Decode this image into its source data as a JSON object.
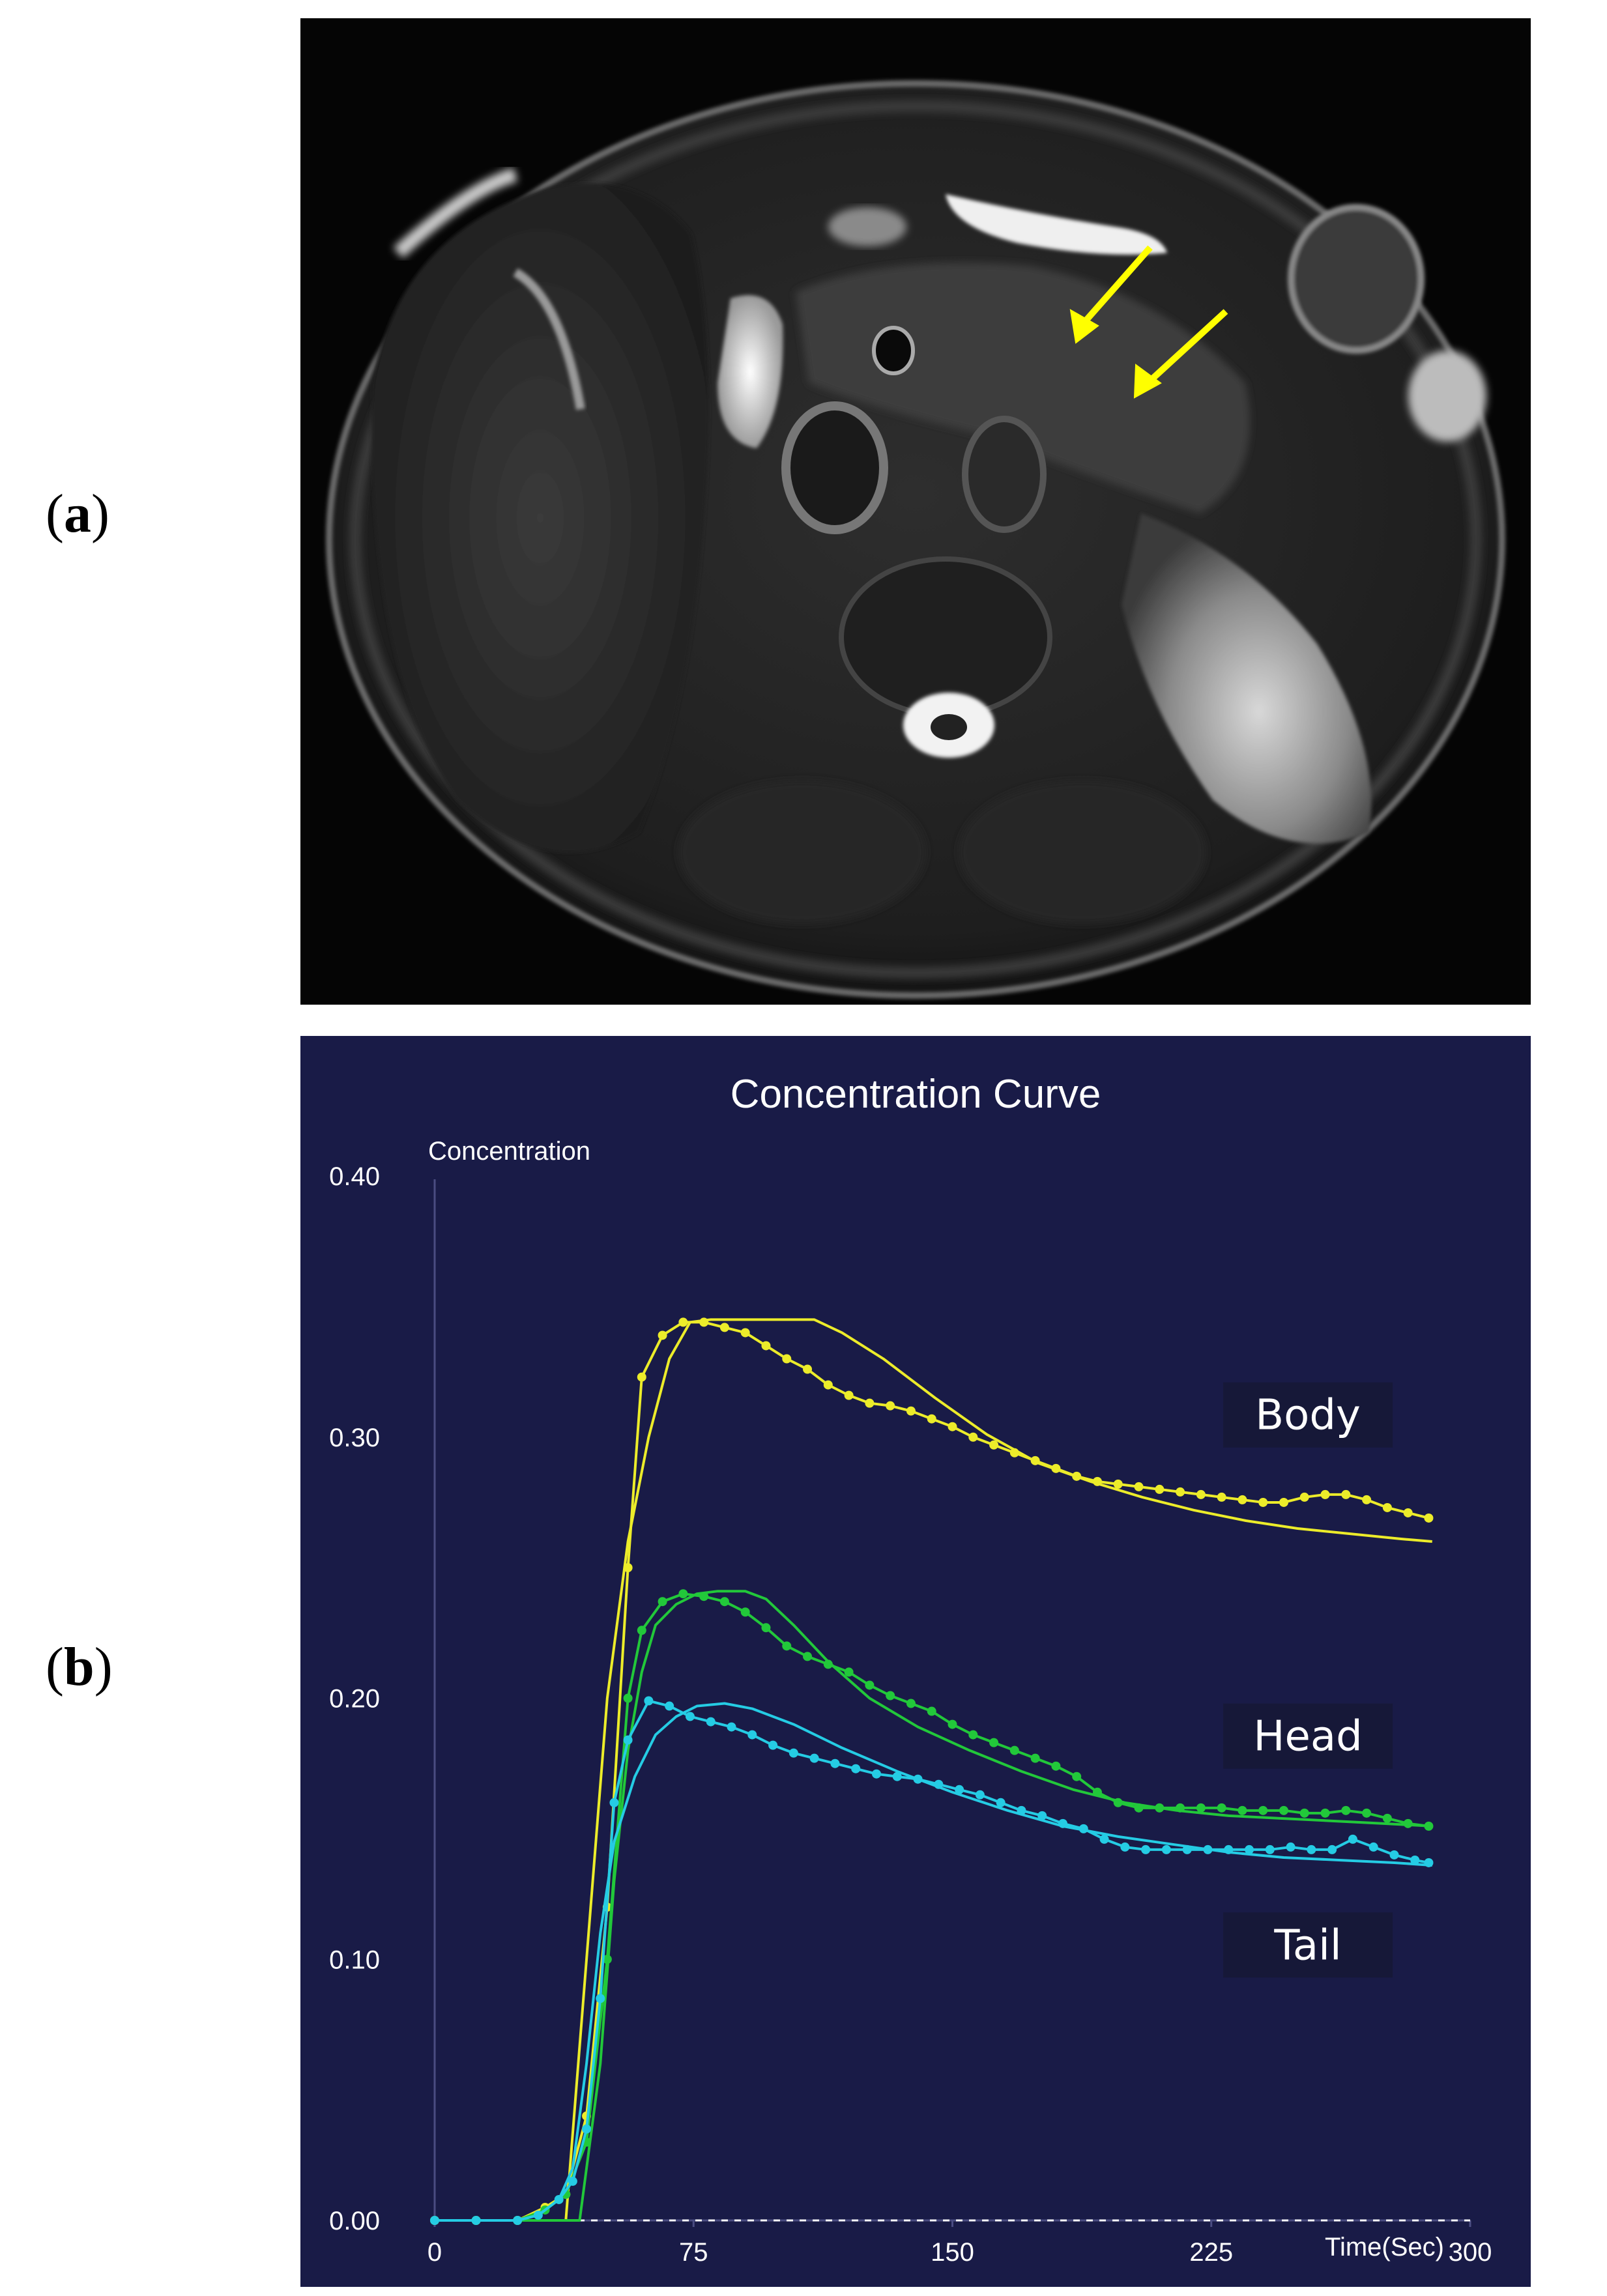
{
  "panels": [
    {
      "label_open": "(",
      "label_letter": "a",
      "label_close": ")"
    },
    {
      "label_open": "(",
      "label_letter": "b",
      "label_close": ")"
    }
  ],
  "colors": {
    "chart_background": "#191b47",
    "mri_background": "#050505",
    "arrow": "#ffff00",
    "body": "#ecec2a",
    "head": "#22c83a",
    "tail": "#25cce4",
    "axis_text": "#ffffff",
    "baseline": "#ffffff"
  },
  "mri": {
    "arrows": [
      {
        "name": "arrow-upper"
      },
      {
        "name": "arrow-lower"
      }
    ]
  },
  "chart_data": {
    "type": "line",
    "title": "Concentration Curve",
    "ylabel": "Concentration",
    "xlabel": "Time(Sec)",
    "xlim": [
      0,
      300
    ],
    "ylim": [
      0.0,
      0.4
    ],
    "xticks": [
      "0",
      "75",
      "150",
      "225",
      "300"
    ],
    "yticks": [
      "0.00",
      "0.10",
      "0.20",
      "0.30",
      "0.40"
    ],
    "grid": false,
    "series": [
      {
        "name": "Body",
        "color_key": "body",
        "measured": [
          [
            0,
            0
          ],
          [
            12,
            0
          ],
          [
            24,
            0
          ],
          [
            32,
            0.005
          ],
          [
            38,
            0.01
          ],
          [
            44,
            0.04
          ],
          [
            50,
            0.12
          ],
          [
            56,
            0.25
          ],
          [
            60,
            0.323
          ],
          [
            66,
            0.339
          ],
          [
            72,
            0.344
          ],
          [
            78,
            0.344
          ],
          [
            84,
            0.342
          ],
          [
            90,
            0.34
          ],
          [
            96,
            0.335
          ],
          [
            102,
            0.33
          ],
          [
            108,
            0.326
          ],
          [
            114,
            0.32
          ],
          [
            120,
            0.316
          ],
          [
            126,
            0.313
          ],
          [
            132,
            0.312
          ],
          [
            138,
            0.31
          ],
          [
            144,
            0.307
          ],
          [
            150,
            0.304
          ],
          [
            156,
            0.3
          ],
          [
            162,
            0.297
          ],
          [
            168,
            0.294
          ],
          [
            174,
            0.291
          ],
          [
            180,
            0.288
          ],
          [
            186,
            0.285
          ],
          [
            192,
            0.283
          ],
          [
            198,
            0.282
          ],
          [
            204,
            0.281
          ],
          [
            210,
            0.28
          ],
          [
            216,
            0.279
          ],
          [
            222,
            0.278
          ],
          [
            228,
            0.277
          ],
          [
            234,
            0.276
          ],
          [
            240,
            0.275
          ],
          [
            246,
            0.275
          ],
          [
            252,
            0.277
          ],
          [
            258,
            0.278
          ],
          [
            264,
            0.278
          ],
          [
            270,
            0.276
          ],
          [
            276,
            0.273
          ],
          [
            282,
            0.271
          ],
          [
            288,
            0.269
          ]
        ],
        "fitted": [
          [
            0,
            0
          ],
          [
            38,
            0
          ],
          [
            44,
            0.1
          ],
          [
            50,
            0.2
          ],
          [
            56,
            0.26
          ],
          [
            62,
            0.3
          ],
          [
            68,
            0.33
          ],
          [
            74,
            0.344
          ],
          [
            80,
            0.345
          ],
          [
            100,
            0.345
          ],
          [
            110,
            0.345
          ],
          [
            118,
            0.34
          ],
          [
            130,
            0.33
          ],
          [
            145,
            0.315
          ],
          [
            160,
            0.301
          ],
          [
            175,
            0.29
          ],
          [
            190,
            0.283
          ],
          [
            205,
            0.277
          ],
          [
            220,
            0.272
          ],
          [
            235,
            0.268
          ],
          [
            250,
            0.265
          ],
          [
            265,
            0.263
          ],
          [
            280,
            0.261
          ],
          [
            289,
            0.26
          ]
        ]
      },
      {
        "name": "Head",
        "color_key": "head",
        "measured": [
          [
            0,
            0
          ],
          [
            12,
            0
          ],
          [
            24,
            0
          ],
          [
            32,
            0.004
          ],
          [
            38,
            0.01
          ],
          [
            44,
            0.03
          ],
          [
            50,
            0.1
          ],
          [
            56,
            0.2
          ],
          [
            60,
            0.226
          ],
          [
            66,
            0.237
          ],
          [
            72,
            0.24
          ],
          [
            78,
            0.239
          ],
          [
            84,
            0.237
          ],
          [
            90,
            0.233
          ],
          [
            96,
            0.227
          ],
          [
            102,
            0.22
          ],
          [
            108,
            0.216
          ],
          [
            114,
            0.213
          ],
          [
            120,
            0.21
          ],
          [
            126,
            0.205
          ],
          [
            132,
            0.201
          ],
          [
            138,
            0.198
          ],
          [
            144,
            0.195
          ],
          [
            150,
            0.19
          ],
          [
            156,
            0.186
          ],
          [
            162,
            0.183
          ],
          [
            168,
            0.18
          ],
          [
            174,
            0.177
          ],
          [
            180,
            0.174
          ],
          [
            186,
            0.17
          ],
          [
            192,
            0.164
          ],
          [
            198,
            0.16
          ],
          [
            204,
            0.158
          ],
          [
            210,
            0.158
          ],
          [
            216,
            0.158
          ],
          [
            222,
            0.158
          ],
          [
            228,
            0.158
          ],
          [
            234,
            0.157
          ],
          [
            240,
            0.157
          ],
          [
            246,
            0.157
          ],
          [
            252,
            0.156
          ],
          [
            258,
            0.156
          ],
          [
            264,
            0.157
          ],
          [
            270,
            0.156
          ],
          [
            276,
            0.154
          ],
          [
            282,
            0.152
          ],
          [
            288,
            0.151
          ]
        ],
        "fitted": [
          [
            0,
            0
          ],
          [
            42,
            0
          ],
          [
            48,
            0.06
          ],
          [
            52,
            0.13
          ],
          [
            56,
            0.18
          ],
          [
            60,
            0.21
          ],
          [
            64,
            0.228
          ],
          [
            70,
            0.236
          ],
          [
            76,
            0.24
          ],
          [
            82,
            0.241
          ],
          [
            90,
            0.241
          ],
          [
            96,
            0.238
          ],
          [
            104,
            0.228
          ],
          [
            114,
            0.214
          ],
          [
            126,
            0.2
          ],
          [
            140,
            0.189
          ],
          [
            155,
            0.18
          ],
          [
            170,
            0.172
          ],
          [
            185,
            0.165
          ],
          [
            200,
            0.16
          ],
          [
            215,
            0.157
          ],
          [
            230,
            0.155
          ],
          [
            245,
            0.154
          ],
          [
            260,
            0.153
          ],
          [
            275,
            0.152
          ],
          [
            289,
            0.151
          ]
        ]
      },
      {
        "name": "Tail",
        "color_key": "tail",
        "measured": [
          [
            0,
            0
          ],
          [
            12,
            0
          ],
          [
            24,
            0
          ],
          [
            30,
            0.002
          ],
          [
            36,
            0.008
          ],
          [
            40,
            0.015
          ],
          [
            44,
            0.035
          ],
          [
            48,
            0.085
          ],
          [
            52,
            0.16
          ],
          [
            56,
            0.184
          ],
          [
            62,
            0.199
          ],
          [
            68,
            0.197
          ],
          [
            74,
            0.193
          ],
          [
            80,
            0.191
          ],
          [
            86,
            0.189
          ],
          [
            92,
            0.186
          ],
          [
            98,
            0.182
          ],
          [
            104,
            0.179
          ],
          [
            110,
            0.177
          ],
          [
            116,
            0.175
          ],
          [
            122,
            0.173
          ],
          [
            128,
            0.171
          ],
          [
            134,
            0.17
          ],
          [
            140,
            0.169
          ],
          [
            146,
            0.167
          ],
          [
            152,
            0.165
          ],
          [
            158,
            0.163
          ],
          [
            164,
            0.16
          ],
          [
            170,
            0.157
          ],
          [
            176,
            0.155
          ],
          [
            182,
            0.152
          ],
          [
            188,
            0.15
          ],
          [
            194,
            0.146
          ],
          [
            200,
            0.143
          ],
          [
            206,
            0.142
          ],
          [
            212,
            0.142
          ],
          [
            218,
            0.142
          ],
          [
            224,
            0.142
          ],
          [
            230,
            0.142
          ],
          [
            236,
            0.142
          ],
          [
            242,
            0.142
          ],
          [
            248,
            0.143
          ],
          [
            254,
            0.142
          ],
          [
            260,
            0.142
          ],
          [
            266,
            0.146
          ],
          [
            272,
            0.143
          ],
          [
            278,
            0.14
          ],
          [
            284,
            0.138
          ],
          [
            288,
            0.137
          ]
        ],
        "fitted": [
          [
            0,
            0
          ],
          [
            24,
            0
          ],
          [
            30,
            0.002
          ],
          [
            36,
            0.008
          ],
          [
            40,
            0.02
          ],
          [
            44,
            0.06
          ],
          [
            48,
            0.11
          ],
          [
            52,
            0.145
          ],
          [
            58,
            0.17
          ],
          [
            64,
            0.186
          ],
          [
            70,
            0.193
          ],
          [
            76,
            0.197
          ],
          [
            84,
            0.198
          ],
          [
            92,
            0.196
          ],
          [
            104,
            0.19
          ],
          [
            118,
            0.181
          ],
          [
            134,
            0.172
          ],
          [
            150,
            0.164
          ],
          [
            166,
            0.157
          ],
          [
            182,
            0.151
          ],
          [
            198,
            0.147
          ],
          [
            214,
            0.144
          ],
          [
            230,
            0.141
          ],
          [
            246,
            0.139
          ],
          [
            262,
            0.138
          ],
          [
            278,
            0.137
          ],
          [
            289,
            0.136
          ]
        ]
      }
    ],
    "annotations": [
      "Body",
      "Head",
      "Tail"
    ]
  }
}
